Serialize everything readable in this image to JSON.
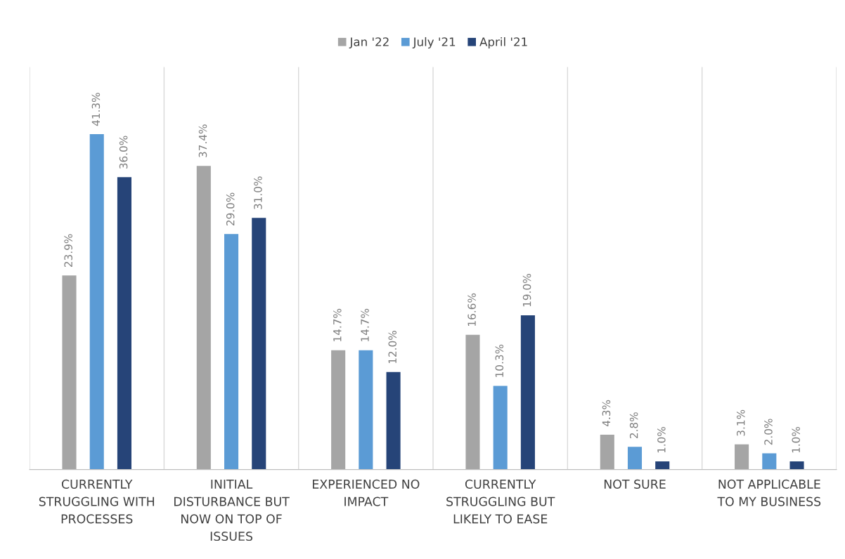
{
  "chart_data": {
    "type": "bar",
    "categories": [
      "CURRENTLY STRUGGLING WITH PROCESSES",
      "INITIAL DISTURBANCE BUT NOW ON TOP OF ISSUES",
      "EXPERIENCED NO IMPACT",
      "CURRENTLY STRUGGLING BUT LIKELY TO EASE",
      "NOT SURE",
      "NOT APPLICABLE TO MY BUSINESS"
    ],
    "series": [
      {
        "name": "Jan '22",
        "color": "#a5a5a5",
        "values": [
          23.9,
          37.4,
          14.7,
          16.6,
          4.3,
          3.1
        ],
        "value_labels": [
          "23.9%",
          "37.4%",
          "14.7%",
          "16.6%",
          "4.3%",
          "3.1%"
        ]
      },
      {
        "name": "July '21",
        "color": "#5b9bd5",
        "values": [
          41.3,
          29.0,
          14.7,
          10.3,
          2.8,
          2.0
        ],
        "value_labels": [
          "41.3%",
          "29.0%",
          "14.7%",
          "10.3%",
          "2.8%",
          "2.0%"
        ]
      },
      {
        "name": "April '21",
        "color": "#264478",
        "values": [
          36.0,
          31.0,
          12.0,
          19.0,
          1.0,
          1.0
        ],
        "value_labels": [
          "36.0%",
          "31.0%",
          "12.0%",
          "19.0%",
          "1.0%",
          "1.0%"
        ]
      }
    ],
    "grid": "x",
    "legend": "top"
  }
}
